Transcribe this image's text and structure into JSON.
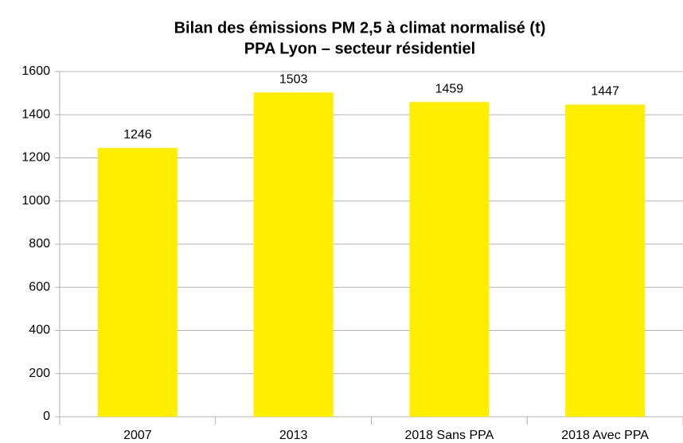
{
  "chart_data": {
    "type": "bar",
    "title": "Bilan des émissions PM 2,5 à climat normalisé (t)",
    "subtitle": "PPA Lyon – secteur résidentiel",
    "categories": [
      "2007",
      "2013",
      "2018 Sans PPA",
      "2018 Avec PPA"
    ],
    "values": [
      1246,
      1503,
      1459,
      1447
    ],
    "color": "#ffee00",
    "ylim": [
      0,
      1600
    ],
    "yticks": [
      0,
      200,
      400,
      600,
      800,
      1000,
      1200,
      1400,
      1600
    ],
    "grid": true
  }
}
